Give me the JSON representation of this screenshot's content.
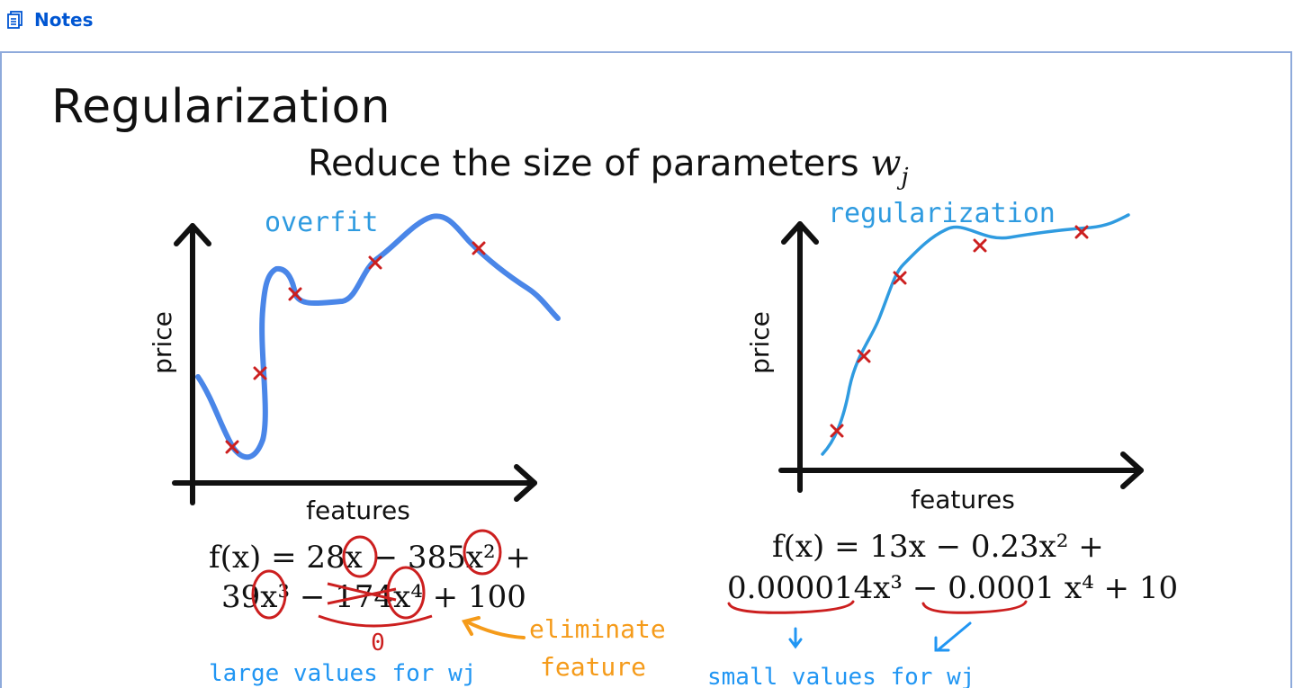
{
  "header": {
    "notes_label": "Notes",
    "notes_icon": "notes-icon",
    "accent_color": "#0056d2"
  },
  "slide": {
    "title": "Regularization",
    "subtitle_text": "Reduce the size of parameters",
    "subtitle_var": "w",
    "subtitle_sub": "j",
    "left_chart": {
      "annotation": "overfit",
      "ylabel": "price",
      "xlabel": "features",
      "equation_line1": "f(x) = 28x − 385x² +",
      "equation_line2": "39x³ − 174x⁴ + 100",
      "zero_mark": "0",
      "arrow_note_line1": "eliminate",
      "arrow_note_line2": "feature",
      "bottom_note": "large values for wj"
    },
    "right_chart": {
      "annotation": "regularization",
      "ylabel": "price",
      "xlabel": "features",
      "equation_line1": "f(x) = 13x − 0.23x² +",
      "equation_line2": "0.000014x³ − 0.0001 x⁴ + 10",
      "bottom_note": "small values for wj"
    },
    "colors": {
      "curve_blue": "#4a86e8",
      "curve_cyan": "#2f9be0",
      "marker_red": "#cc1f1f",
      "note_orange": "#f59b1a",
      "note_blue": "#2196f3",
      "ink": "#111111"
    }
  }
}
